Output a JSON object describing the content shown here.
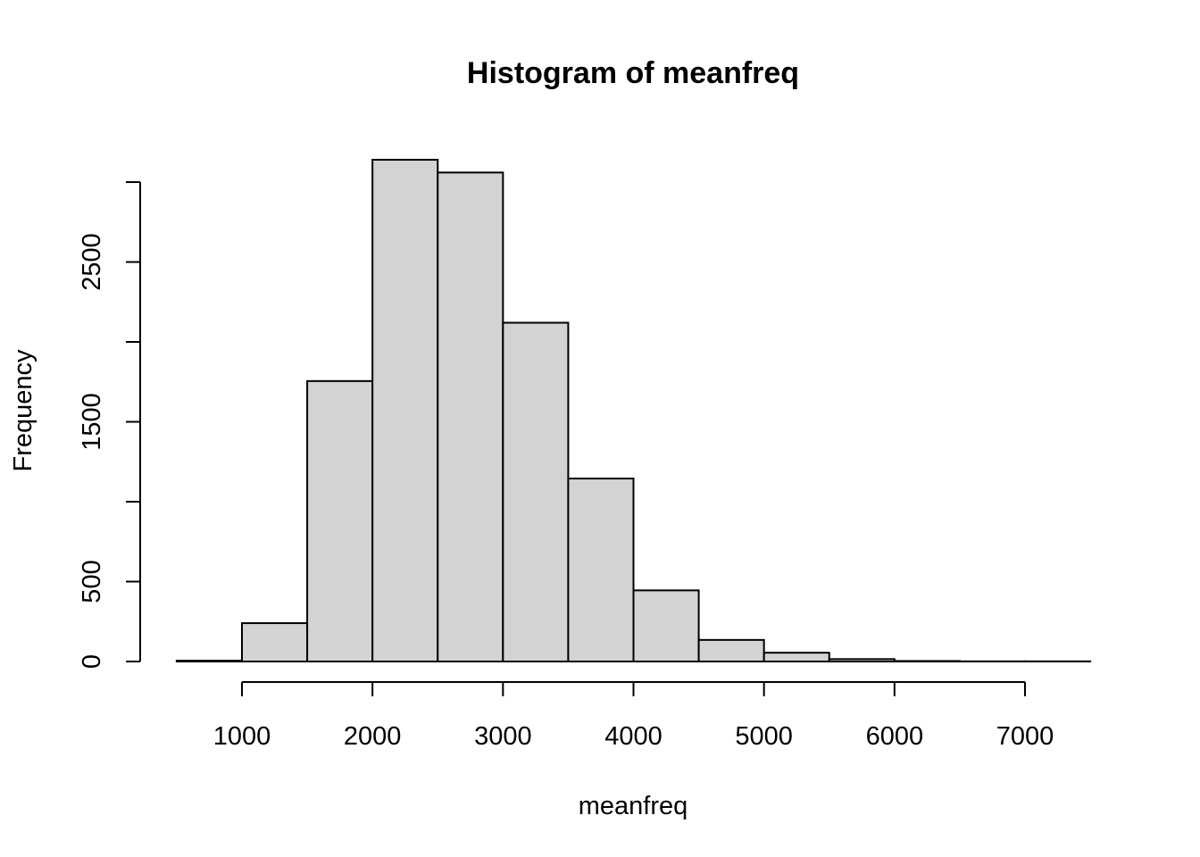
{
  "chart_data": {
    "type": "bar",
    "title": "Histogram of meanfreq",
    "xlabel": "meanfreq",
    "ylabel": "Frequency",
    "bins": [
      {
        "start": 500,
        "end": 1000,
        "count": 5
      },
      {
        "start": 1000,
        "end": 1500,
        "count": 240
      },
      {
        "start": 1500,
        "end": 2000,
        "count": 1755
      },
      {
        "start": 2000,
        "end": 2500,
        "count": 3140
      },
      {
        "start": 2500,
        "end": 3000,
        "count": 3060
      },
      {
        "start": 3000,
        "end": 3500,
        "count": 2120
      },
      {
        "start": 3500,
        "end": 4000,
        "count": 1145
      },
      {
        "start": 4000,
        "end": 4500,
        "count": 445
      },
      {
        "start": 4500,
        "end": 5000,
        "count": 135
      },
      {
        "start": 5000,
        "end": 5500,
        "count": 55
      },
      {
        "start": 5500,
        "end": 6000,
        "count": 15
      },
      {
        "start": 6000,
        "end": 6500,
        "count": 3
      },
      {
        "start": 6500,
        "end": 7000,
        "count": 1
      },
      {
        "start": 7000,
        "end": 7500,
        "count": 1
      }
    ],
    "x_ticks": [
      "1000",
      "2000",
      "3000",
      "4000",
      "5000",
      "6000",
      "7000"
    ],
    "x_tick_values": [
      1000,
      2000,
      3000,
      4000,
      5000,
      6000,
      7000
    ],
    "y_ticks": [
      "0",
      "500",
      "1500",
      "2500"
    ],
    "y_tick_values": [
      0,
      500,
      1500,
      2500
    ],
    "y_minor_tick_values": [
      1000,
      2000,
      3000
    ],
    "xlim": [
      500,
      7500
    ],
    "ylim": [
      0,
      3000
    ],
    "colors": {
      "bar_fill": "#d3d3d3",
      "bar_stroke": "#000000"
    }
  }
}
